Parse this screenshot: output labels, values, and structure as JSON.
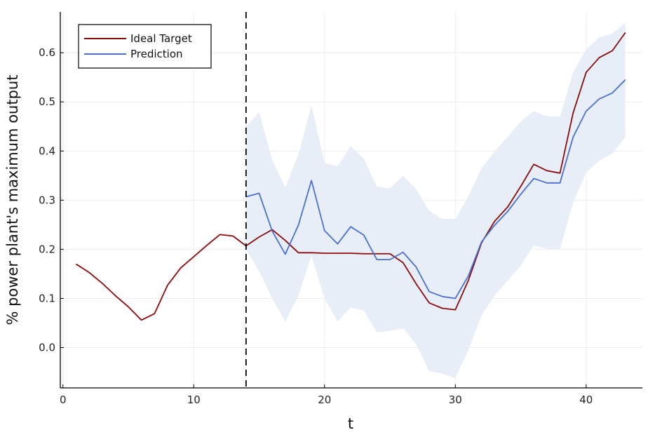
{
  "chart_data": {
    "type": "line",
    "xlabel": "t",
    "ylabel": "% power plant's maximum output",
    "xlim": [
      -0.2,
      44.3
    ],
    "ylim": [
      -0.082,
      0.683
    ],
    "x_ticks": [
      0,
      10,
      20,
      30,
      40
    ],
    "x_tick_labels": [
      "0",
      "10",
      "20",
      "30",
      "40"
    ],
    "y_ticks": [
      0.0,
      0.1,
      0.2,
      0.3,
      0.4,
      0.5,
      0.6
    ],
    "y_tick_labels": [
      "0.0",
      "0.1",
      "0.2",
      "0.3",
      "0.4",
      "0.5",
      "0.6"
    ],
    "grid": true,
    "legend_position": "top-left",
    "vline_x": 14,
    "colors": {
      "ideal": "#8B0A0A",
      "prediction": "#4A6FCF",
      "band": "#E8EEF8",
      "grid": "#ECECEC",
      "axis": "#000000",
      "vline": "#000000"
    },
    "series": [
      {
        "name": "Ideal Target",
        "x": [
          1,
          2,
          3,
          4,
          5,
          6,
          7,
          8,
          9,
          10,
          11,
          12,
          13,
          14,
          15,
          16,
          17,
          18,
          19,
          20,
          21,
          22,
          23,
          24,
          25,
          26,
          27,
          28,
          29,
          30,
          31,
          32,
          33,
          34,
          35,
          36,
          37,
          38,
          39,
          40,
          41,
          42,
          43
        ],
        "values": [
          0.17,
          0.153,
          0.131,
          0.106,
          0.083,
          0.056,
          0.069,
          0.127,
          0.162,
          0.185,
          0.208,
          0.23,
          0.227,
          0.207,
          0.225,
          0.24,
          0.218,
          0.193,
          0.193,
          0.192,
          0.192,
          0.192,
          0.191,
          0.191,
          0.191,
          0.173,
          0.13,
          0.091,
          0.08,
          0.077,
          0.137,
          0.213,
          0.257,
          0.286,
          0.328,
          0.373,
          0.36,
          0.355,
          0.477,
          0.56,
          0.59,
          0.604,
          0.641
        ]
      },
      {
        "name": "Prediction",
        "x": [
          14,
          15,
          16,
          17,
          18,
          19,
          20,
          21,
          22,
          23,
          24,
          25,
          26,
          27,
          28,
          29,
          30,
          31,
          32,
          33,
          34,
          35,
          36,
          37,
          38,
          39,
          40,
          41,
          42,
          43
        ],
        "values": [
          0.307,
          0.314,
          0.237,
          0.19,
          0.249,
          0.34,
          0.238,
          0.211,
          0.246,
          0.229,
          0.179,
          0.179,
          0.194,
          0.164,
          0.114,
          0.104,
          0.1,
          0.146,
          0.215,
          0.249,
          0.277,
          0.312,
          0.344,
          0.335,
          0.335,
          0.428,
          0.481,
          0.506,
          0.518,
          0.545
        ],
        "lower": [
          0.2,
          0.155,
          0.1,
          0.053,
          0.105,
          0.187,
          0.099,
          0.053,
          0.082,
          0.075,
          0.031,
          0.034,
          0.039,
          0.007,
          -0.048,
          -0.053,
          -0.062,
          -0.005,
          0.065,
          0.106,
          0.136,
          0.167,
          0.208,
          0.201,
          0.2,
          0.295,
          0.356,
          0.38,
          0.395,
          0.428
        ],
        "upper": [
          0.45,
          0.479,
          0.382,
          0.326,
          0.393,
          0.493,
          0.376,
          0.369,
          0.41,
          0.385,
          0.328,
          0.324,
          0.35,
          0.322,
          0.278,
          0.262,
          0.262,
          0.308,
          0.365,
          0.399,
          0.429,
          0.46,
          0.481,
          0.471,
          0.47,
          0.56,
          0.607,
          0.631,
          0.639,
          0.661
        ]
      }
    ]
  }
}
